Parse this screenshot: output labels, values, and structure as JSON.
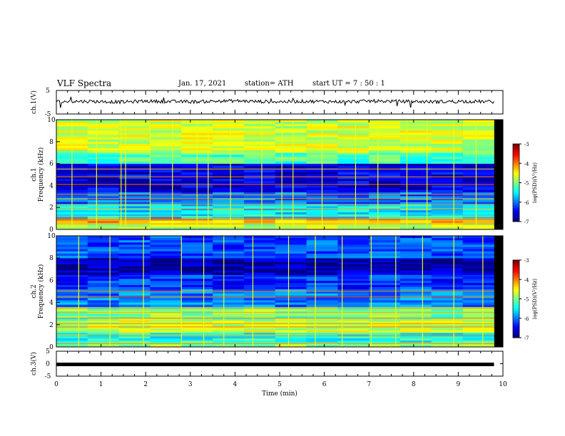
{
  "header": {
    "title": "VLF Spectra",
    "date": "Jan. 17, 2021",
    "station": "station= ATH",
    "start": "start  UT =   7 : 50 : 1"
  },
  "chart_data": [
    {
      "type": "line",
      "name": "ch1-waveform",
      "ylabel": "ch.1(V)",
      "ylim": [
        -5,
        5
      ],
      "yticks": [
        "5",
        "-5"
      ],
      "xlim": [
        0,
        10
      ],
      "x": [
        0,
        0.5,
        1.0,
        1.5,
        2.0,
        2.5,
        3.0,
        3.5,
        4.0,
        4.5,
        5.0,
        5.5,
        6.0,
        6.5,
        7.0,
        7.5,
        8.0,
        8.5,
        9.0,
        9.5,
        9.8
      ],
      "y": [
        0.2,
        0.4,
        0.3,
        0.1,
        0.5,
        0.3,
        0.2,
        0.4,
        0.6,
        0.3,
        0.2,
        0.4,
        0.3,
        0.2,
        0.5,
        0.4,
        0.3,
        0.2,
        0.4,
        0.3,
        0.2
      ]
    },
    {
      "type": "heatmap",
      "name": "ch1-spectrogram",
      "ylabel": "ch.1\nFrequency (kHz)",
      "ylim": [
        0,
        10
      ],
      "yticks": [
        "0",
        "2",
        "4",
        "6",
        "8",
        "10"
      ],
      "xlim": [
        0,
        10
      ],
      "data_end_min": 9.8,
      "colorbar": {
        "label": "log(PSD)(V²/Hz)",
        "range": [
          -7,
          -3
        ],
        "ticks": [
          "-3",
          "-4",
          "-5",
          "-6",
          "-7"
        ]
      },
      "bands_khz": [
        {
          "from": 0.0,
          "to": 0.6,
          "level": -4.8
        },
        {
          "from": 0.6,
          "to": 1.0,
          "level": -4.2
        },
        {
          "from": 1.0,
          "to": 2.3,
          "level": -5.6
        },
        {
          "from": 2.3,
          "to": 3.4,
          "level": -6.1
        },
        {
          "from": 3.4,
          "to": 6.0,
          "level": -6.6
        },
        {
          "from": 6.0,
          "to": 7.0,
          "level": -5.2
        },
        {
          "from": 7.0,
          "to": 10.0,
          "level": -4.7
        }
      ],
      "lines_khz": [
        0.5,
        0.9,
        1.2,
        1.9,
        2.3,
        2.8,
        3.2,
        4.1,
        4.8,
        5.5
      ],
      "spikes_min": [
        0.35,
        0.9,
        1.45,
        1.55,
        2.1,
        2.6,
        3.15,
        3.4,
        3.9,
        4.6,
        5.05,
        5.3,
        5.95,
        6.7,
        7.2,
        7.85,
        8.3,
        8.9,
        9.4
      ]
    },
    {
      "type": "heatmap",
      "name": "ch2-spectrogram",
      "ylabel": "ch.2\nFrequency (kHz)",
      "ylim": [
        0,
        10
      ],
      "yticks": [
        "0",
        "2",
        "4",
        "6",
        "8",
        "10"
      ],
      "xlim": [
        0,
        10
      ],
      "data_end_min": 9.8,
      "colorbar": {
        "label": "log(PSD)(V²/Hz)",
        "range": [
          -7,
          -3
        ],
        "ticks": [
          "-3",
          "-4",
          "-5",
          "-6",
          "-7"
        ]
      },
      "bands_khz": [
        {
          "from": 0.0,
          "to": 0.4,
          "level": -4.9
        },
        {
          "from": 0.4,
          "to": 1.3,
          "level": -5.4
        },
        {
          "from": 1.3,
          "to": 2.4,
          "level": -4.7
        },
        {
          "from": 2.4,
          "to": 3.6,
          "level": -5.0
        },
        {
          "from": 3.6,
          "to": 5.2,
          "level": -6.0
        },
        {
          "from": 5.2,
          "to": 6.5,
          "level": -6.3
        },
        {
          "from": 6.5,
          "to": 8.0,
          "level": -6.8
        },
        {
          "from": 8.0,
          "to": 10.0,
          "level": -6.2
        }
      ],
      "lines_khz": [
        0.3,
        1.0,
        1.8,
        2.1,
        2.6,
        3.1,
        3.5,
        4.5,
        5.0
      ],
      "spikes_min": [
        0.5,
        1.2,
        1.95,
        2.8,
        3.3,
        3.75,
        4.4,
        5.2,
        5.8,
        6.4,
        7.05,
        7.6,
        8.2,
        8.9,
        9.55
      ]
    },
    {
      "type": "line",
      "name": "ch3-waveform",
      "ylabel": "ch.3(V)",
      "ylim": [
        -5,
        5
      ],
      "yticks": [
        "5",
        "0",
        "-5"
      ],
      "xlim": [
        0,
        10
      ],
      "x": [
        0,
        9.8
      ],
      "y": [
        -0.3,
        -0.3
      ],
      "xlabel": "Time (min)",
      "xticks": [
        "0",
        "1",
        "2",
        "3",
        "4",
        "5",
        "6",
        "7",
        "8",
        "9",
        "10"
      ]
    }
  ]
}
